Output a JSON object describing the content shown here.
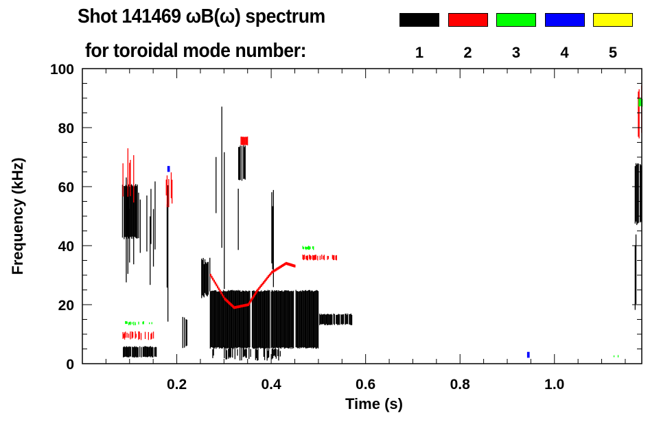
{
  "chart_data": {
    "type": "heatmap",
    "title_line1": "Shot 141469 ωB(ω) spectrum",
    "title_line2": "for toroidal mode number:",
    "xlabel": "Time (s)",
    "ylabel": "Frequency (kHz)",
    "xlim": [
      0,
      1.185
    ],
    "ylim": [
      0,
      100
    ],
    "xticks": [
      0.2,
      0.4,
      0.6,
      0.8,
      1.0
    ],
    "xtick_labels": [
      "0.2",
      "0.4",
      "0.6",
      "0.8",
      "1.0"
    ],
    "yticks": [
      0,
      20,
      40,
      60,
      80,
      100
    ],
    "ytick_labels": [
      "0",
      "20",
      "40",
      "60",
      "80",
      "100"
    ],
    "legend": [
      {
        "label": "1",
        "color": "#000000"
      },
      {
        "label": "2",
        "color": "#ff0000"
      },
      {
        "label": "3",
        "color": "#00ff00"
      },
      {
        "label": "4",
        "color": "#0000ff"
      },
      {
        "label": "5",
        "color": "#ffff00"
      }
    ],
    "legend_placement": "top-right",
    "regions": [
      {
        "mode": 1,
        "t": [
          0.084,
          0.116
        ],
        "f": [
          42,
          61
        ],
        "density": 0.9
      },
      {
        "mode": 1,
        "t": [
          0.085,
          0.157
        ],
        "f": [
          25,
          68
        ],
        "density": 0.25
      },
      {
        "mode": 1,
        "t": [
          0.084,
          0.157
        ],
        "f": [
          2,
          6
        ],
        "density": 0.8
      },
      {
        "mode": 1,
        "t": [
          0.175,
          0.188
        ],
        "f": [
          7,
          77
        ],
        "density": 0.4
      },
      {
        "mode": 1,
        "t": [
          0.21,
          0.222
        ],
        "f": [
          5,
          16
        ],
        "density": 0.8
      },
      {
        "mode": 1,
        "t": [
          0.25,
          0.27
        ],
        "f": [
          22,
          36
        ],
        "density": 0.7
      },
      {
        "mode": 1,
        "t": [
          0.27,
          0.5
        ],
        "f": [
          5,
          25
        ],
        "density": 0.95
      },
      {
        "mode": 1,
        "t": [
          0.27,
          0.42
        ],
        "f": [
          1,
          6
        ],
        "density": 0.4
      },
      {
        "mode": 1,
        "t": [
          0.5,
          0.57
        ],
        "f": [
          13,
          17
        ],
        "density": 0.8
      },
      {
        "mode": 1,
        "t": [
          0.27,
          0.35
        ],
        "f": [
          25,
          95
        ],
        "density": 0.08
      },
      {
        "mode": 1,
        "t": [
          0.33,
          0.345
        ],
        "f": [
          62,
          74
        ],
        "density": 0.9
      },
      {
        "mode": 1,
        "t": [
          0.395,
          0.405
        ],
        "f": [
          25,
          60
        ],
        "density": 0.5
      },
      {
        "mode": 1,
        "t": [
          1.17,
          1.185
        ],
        "f": [
          47,
          68
        ],
        "density": 0.9
      },
      {
        "mode": 1,
        "t": [
          1.17,
          1.185
        ],
        "f": [
          15,
          47
        ],
        "density": 0.25
      },
      {
        "mode": 2,
        "t": [
          0.085,
          0.116
        ],
        "f": [
          53,
          74
        ],
        "density": 0.35
      },
      {
        "mode": 2,
        "t": [
          0.085,
          0.153
        ],
        "f": [
          8,
          11
        ],
        "density": 0.5
      },
      {
        "mode": 2,
        "t": [
          0.175,
          0.196
        ],
        "f": [
          53,
          67
        ],
        "density": 0.4
      },
      {
        "mode": 2,
        "t": [
          0.335,
          0.35
        ],
        "f": [
          74,
          77
        ],
        "density": 0.9
      },
      {
        "mode": 2,
        "t": [
          0.466,
          0.538
        ],
        "f": [
          35,
          37
        ],
        "density": 0.6
      },
      {
        "mode": 2,
        "t": [
          1.175,
          1.185
        ],
        "f": [
          75,
          95
        ],
        "density": 0.6
      },
      {
        "mode": 3,
        "t": [
          0.087,
          0.15
        ],
        "f": [
          13,
          14.5
        ],
        "density": 0.4
      },
      {
        "mode": 3,
        "t": [
          0.466,
          0.49
        ],
        "f": [
          38.5,
          40
        ],
        "density": 0.5
      },
      {
        "mode": 3,
        "t": [
          1.12,
          1.135
        ],
        "f": [
          2,
          3
        ],
        "density": 0.6
      },
      {
        "mode": 3,
        "t": [
          1.178,
          1.185
        ],
        "f": [
          87,
          90
        ],
        "density": 0.8
      },
      {
        "mode": 4,
        "t": [
          0.942,
          0.946
        ],
        "f": [
          2,
          4
        ],
        "density": 1
      },
      {
        "mode": 4,
        "t": [
          0.18,
          0.184
        ],
        "f": [
          65,
          67
        ],
        "density": 1
      }
    ],
    "mode2_track": {
      "t": [
        0.27,
        0.3,
        0.32,
        0.35,
        0.37,
        0.4,
        0.43,
        0.45
      ],
      "f": [
        30,
        22,
        19,
        20,
        25,
        31,
        34,
        33
      ]
    }
  }
}
